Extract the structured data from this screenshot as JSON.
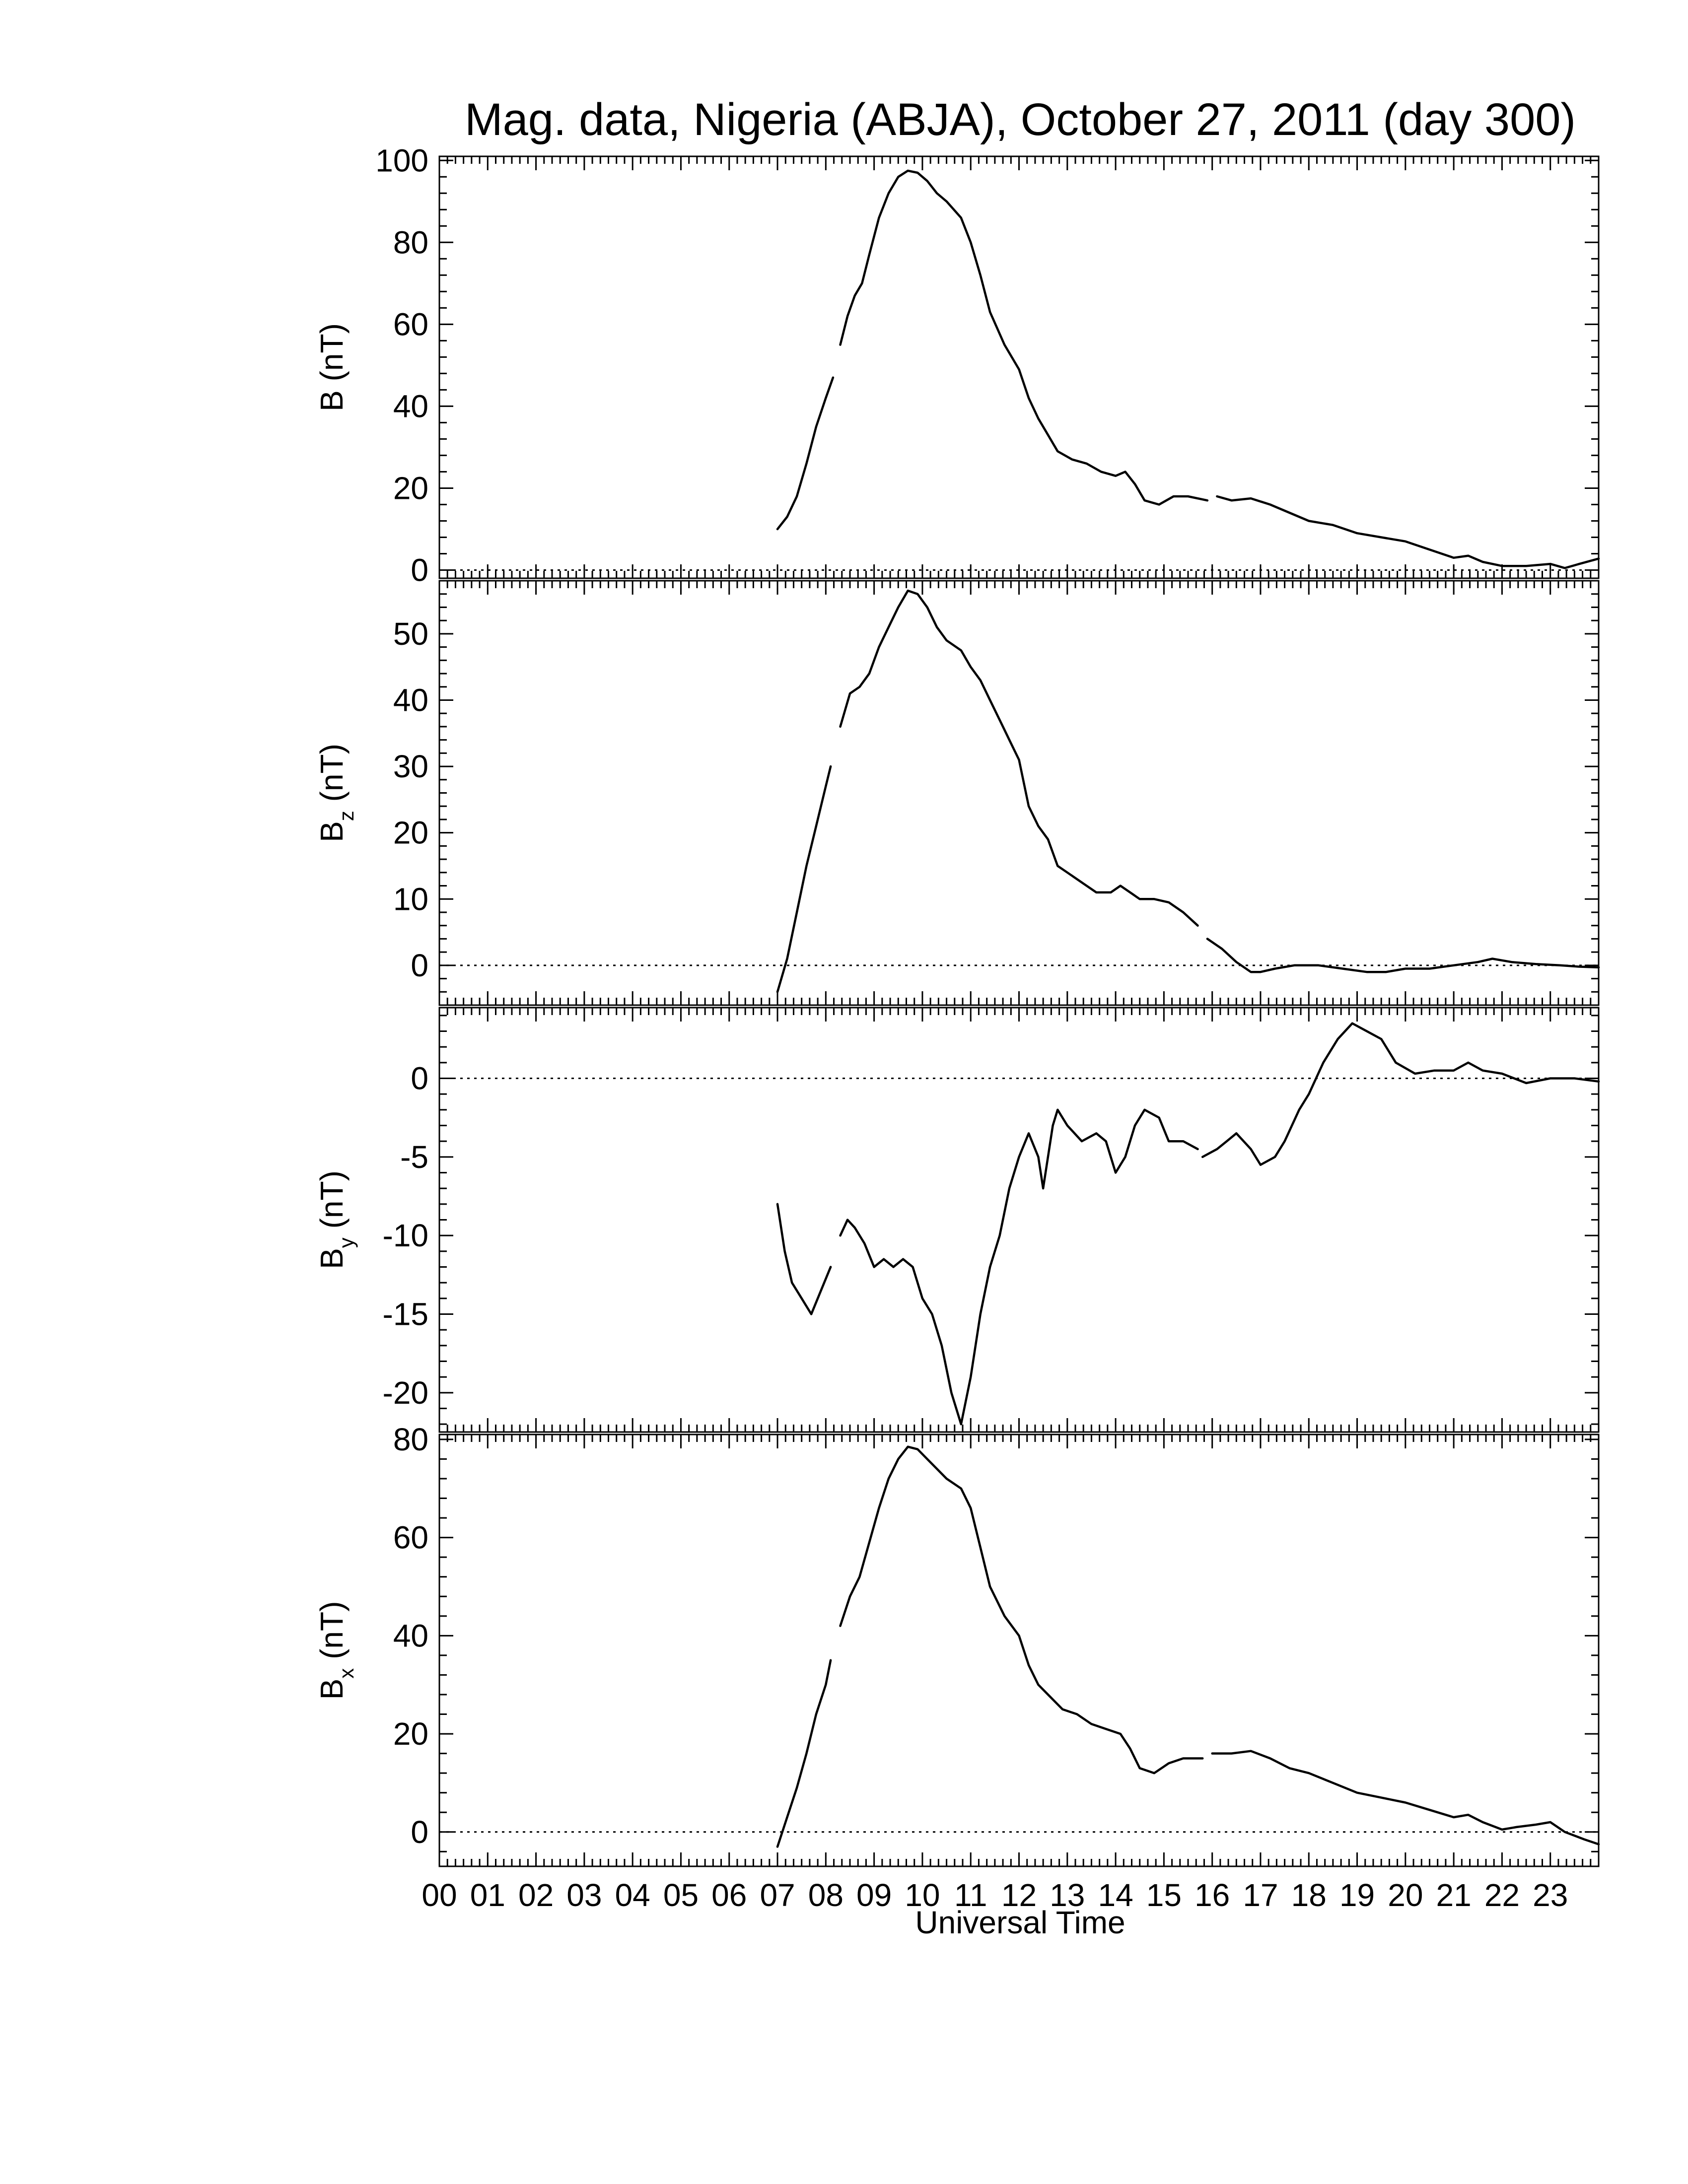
{
  "chart_data": {
    "type": "line",
    "title": "Mag. data, Nigeria (ABJA), October 27, 2011 (day 300)",
    "xlabel": "Universal Time",
    "x_ticks": [
      "00",
      "01",
      "02",
      "03",
      "04",
      "05",
      "06",
      "07",
      "08",
      "09",
      "10",
      "11",
      "12",
      "13",
      "14",
      "15",
      "16",
      "17",
      "18",
      "19",
      "20",
      "21",
      "22",
      "23"
    ],
    "xlim": [
      0,
      24
    ],
    "x_unit": "hours UT",
    "panels": [
      {
        "id": "B",
        "ylabel_main": "B",
        "ylabel_sub": "",
        "ylabel_unit": "(nT)",
        "ylim": [
          -2,
          101
        ],
        "yticks": [
          0,
          20,
          40,
          60,
          80,
          100
        ],
        "zero_line": true,
        "segments": [
          [
            [
              7.0,
              10
            ],
            [
              7.2,
              13
            ],
            [
              7.4,
              18
            ],
            [
              7.6,
              26
            ],
            [
              7.8,
              35
            ],
            [
              8.0,
              42
            ],
            [
              8.15,
              47
            ]
          ],
          [
            [
              8.3,
              55
            ],
            [
              8.45,
              62
            ],
            [
              8.6,
              67
            ],
            [
              8.75,
              70
            ],
            [
              8.9,
              77
            ],
            [
              9.1,
              86
            ],
            [
              9.3,
              92
            ],
            [
              9.5,
              96
            ],
            [
              9.7,
              97.5
            ],
            [
              9.9,
              97
            ],
            [
              10.1,
              95
            ],
            [
              10.3,
              92
            ],
            [
              10.5,
              90
            ],
            [
              10.8,
              86
            ],
            [
              11.0,
              80
            ],
            [
              11.2,
              72
            ],
            [
              11.4,
              63
            ],
            [
              11.7,
              55
            ],
            [
              12.0,
              49
            ],
            [
              12.2,
              42
            ],
            [
              12.4,
              37
            ],
            [
              12.6,
              33
            ],
            [
              12.8,
              29
            ],
            [
              13.1,
              27
            ],
            [
              13.4,
              26
            ],
            [
              13.7,
              24
            ],
            [
              14.0,
              23
            ],
            [
              14.2,
              24
            ],
            [
              14.4,
              21
            ],
            [
              14.6,
              17
            ],
            [
              14.9,
              16
            ],
            [
              15.2,
              18
            ],
            [
              15.5,
              18
            ],
            [
              15.9,
              17
            ]
          ],
          [
            [
              16.1,
              18
            ],
            [
              16.4,
              17
            ],
            [
              16.8,
              17.5
            ],
            [
              17.2,
              16
            ],
            [
              17.6,
              14
            ],
            [
              18.0,
              12
            ],
            [
              18.5,
              11
            ],
            [
              19.0,
              9
            ],
            [
              19.5,
              8
            ],
            [
              20.0,
              7
            ],
            [
              20.5,
              5
            ],
            [
              21.0,
              3
            ],
            [
              21.3,
              3.5
            ],
            [
              21.6,
              2
            ],
            [
              22.0,
              1
            ],
            [
              22.5,
              1
            ],
            [
              23.0,
              1.5
            ],
            [
              23.3,
              0.5
            ],
            [
              23.6,
              1.5
            ],
            [
              24.0,
              2.8
            ]
          ]
        ]
      },
      {
        "id": "Bz",
        "ylabel_main": "B",
        "ylabel_sub": "z",
        "ylabel_unit": "(nT)",
        "ylim": [
          -6,
          58
        ],
        "yticks": [
          0,
          10,
          20,
          30,
          40,
          50
        ],
        "zero_line": true,
        "segments": [
          [
            [
              7.0,
              -4
            ],
            [
              7.2,
              1
            ],
            [
              7.4,
              8
            ],
            [
              7.6,
              15
            ],
            [
              7.8,
              21
            ],
            [
              8.0,
              27
            ],
            [
              8.1,
              30
            ]
          ],
          [
            [
              8.3,
              36
            ],
            [
              8.5,
              41
            ],
            [
              8.7,
              42
            ],
            [
              8.9,
              44
            ],
            [
              9.1,
              48
            ],
            [
              9.3,
              51
            ],
            [
              9.5,
              54
            ],
            [
              9.7,
              56.5
            ],
            [
              9.9,
              56
            ],
            [
              10.1,
              54
            ],
            [
              10.3,
              51
            ],
            [
              10.5,
              49
            ],
            [
              10.8,
              47.5
            ],
            [
              11.0,
              45
            ],
            [
              11.2,
              43
            ],
            [
              11.4,
              40
            ],
            [
              11.6,
              37
            ],
            [
              11.8,
              34
            ],
            [
              12.0,
              31
            ],
            [
              12.2,
              24
            ],
            [
              12.4,
              21
            ],
            [
              12.6,
              19
            ],
            [
              12.8,
              15
            ],
            [
              13.0,
              14
            ],
            [
              13.3,
              12.5
            ],
            [
              13.6,
              11
            ],
            [
              13.9,
              11
            ],
            [
              14.1,
              12
            ],
            [
              14.3,
              11
            ],
            [
              14.5,
              10
            ],
            [
              14.8,
              10
            ],
            [
              15.1,
              9.5
            ],
            [
              15.4,
              8
            ],
            [
              15.7,
              6
            ]
          ],
          [
            [
              15.9,
              4
            ],
            [
              16.2,
              2.5
            ],
            [
              16.5,
              0.5
            ],
            [
              16.8,
              -1
            ],
            [
              17.0,
              -1
            ],
            [
              17.3,
              -0.5
            ],
            [
              17.7,
              0
            ],
            [
              18.2,
              0
            ],
            [
              18.7,
              -0.5
            ],
            [
              19.2,
              -1
            ],
            [
              19.6,
              -1
            ],
            [
              20.0,
              -0.5
            ],
            [
              20.5,
              -0.5
            ],
            [
              21.0,
              0
            ],
            [
              21.5,
              0.5
            ],
            [
              21.8,
              1
            ],
            [
              22.2,
              0.5
            ],
            [
              22.7,
              0.2
            ],
            [
              23.2,
              0
            ],
            [
              23.6,
              -0.2
            ],
            [
              24.0,
              -0.3
            ]
          ]
        ]
      },
      {
        "id": "By",
        "ylabel_main": "B",
        "ylabel_sub": "y",
        "ylabel_unit": "(nT)",
        "ylim": [
          -22.5,
          4.5
        ],
        "yticks": [
          0,
          -5,
          -10,
          -15,
          -20
        ],
        "zero_line": true,
        "segments": [
          [
            [
              7.0,
              -8
            ],
            [
              7.15,
              -11
            ],
            [
              7.3,
              -13
            ],
            [
              7.5,
              -14
            ],
            [
              7.7,
              -15
            ],
            [
              7.9,
              -13.5
            ],
            [
              8.1,
              -12
            ]
          ],
          [
            [
              8.3,
              -10
            ],
            [
              8.45,
              -9
            ],
            [
              8.6,
              -9.5
            ],
            [
              8.8,
              -10.5
            ],
            [
              9.0,
              -12
            ],
            [
              9.2,
              -11.5
            ],
            [
              9.4,
              -12
            ],
            [
              9.6,
              -11.5
            ],
            [
              9.8,
              -12
            ],
            [
              10.0,
              -14
            ],
            [
              10.2,
              -15
            ],
            [
              10.4,
              -17
            ],
            [
              10.6,
              -20
            ],
            [
              10.8,
              -22
            ],
            [
              11.0,
              -19
            ],
            [
              11.2,
              -15
            ],
            [
              11.4,
              -12
            ],
            [
              11.6,
              -10
            ],
            [
              11.8,
              -7
            ],
            [
              12.0,
              -5
            ],
            [
              12.2,
              -3.5
            ],
            [
              12.4,
              -5
            ],
            [
              12.5,
              -7
            ],
            [
              12.7,
              -3
            ],
            [
              12.8,
              -2
            ],
            [
              13.0,
              -3
            ],
            [
              13.3,
              -4
            ],
            [
              13.6,
              -3.5
            ],
            [
              13.8,
              -4
            ],
            [
              14.0,
              -6
            ],
            [
              14.2,
              -5
            ],
            [
              14.4,
              -3
            ],
            [
              14.6,
              -2
            ],
            [
              14.9,
              -2.5
            ],
            [
              15.1,
              -4
            ],
            [
              15.4,
              -4
            ],
            [
              15.7,
              -4.5
            ]
          ],
          [
            [
              15.8,
              -5
            ],
            [
              16.1,
              -4.5
            ],
            [
              16.3,
              -4
            ],
            [
              16.5,
              -3.5
            ],
            [
              16.8,
              -4.5
            ],
            [
              17.0,
              -5.5
            ],
            [
              17.3,
              -5
            ],
            [
              17.5,
              -4
            ],
            [
              17.8,
              -2
            ],
            [
              18.0,
              -1
            ],
            [
              18.3,
              1
            ],
            [
              18.6,
              2.5
            ],
            [
              18.9,
              3.5
            ],
            [
              19.2,
              3
            ],
            [
              19.5,
              2.5
            ],
            [
              19.8,
              1
            ],
            [
              20.2,
              0.3
            ],
            [
              20.6,
              0.5
            ],
            [
              21.0,
              0.5
            ],
            [
              21.3,
              1
            ],
            [
              21.6,
              0.5
            ],
            [
              22.0,
              0.3
            ],
            [
              22.5,
              -0.3
            ],
            [
              23.0,
              0
            ],
            [
              23.5,
              0
            ],
            [
              24.0,
              -0.2
            ]
          ]
        ]
      },
      {
        "id": "Bx",
        "ylabel_main": "B",
        "ylabel_sub": "x",
        "ylabel_unit": "(nT)",
        "ylim": [
          -7,
          81
        ],
        "yticks": [
          0,
          20,
          40,
          60,
          80
        ],
        "zero_line": true,
        "segments": [
          [
            [
              7.0,
              -3
            ],
            [
              7.2,
              3
            ],
            [
              7.4,
              9
            ],
            [
              7.6,
              16
            ],
            [
              7.8,
              24
            ],
            [
              8.0,
              30
            ],
            [
              8.1,
              35
            ]
          ],
          [
            [
              8.3,
              42
            ],
            [
              8.5,
              48
            ],
            [
              8.7,
              52
            ],
            [
              8.9,
              59
            ],
            [
              9.1,
              66
            ],
            [
              9.3,
              72
            ],
            [
              9.5,
              76
            ],
            [
              9.7,
              78.5
            ],
            [
              9.9,
              78
            ],
            [
              10.1,
              76
            ],
            [
              10.3,
              74
            ],
            [
              10.5,
              72
            ],
            [
              10.8,
              70
            ],
            [
              11.0,
              66
            ],
            [
              11.2,
              58
            ],
            [
              11.4,
              50
            ],
            [
              11.7,
              44
            ],
            [
              12.0,
              40
            ],
            [
              12.2,
              34
            ],
            [
              12.4,
              30
            ],
            [
              12.6,
              28
            ],
            [
              12.9,
              25
            ],
            [
              13.2,
              24
            ],
            [
              13.5,
              22
            ],
            [
              13.8,
              21
            ],
            [
              14.1,
              20
            ],
            [
              14.3,
              17
            ],
            [
              14.5,
              13
            ],
            [
              14.8,
              12
            ],
            [
              15.1,
              14
            ],
            [
              15.4,
              15
            ],
            [
              15.8,
              15
            ]
          ],
          [
            [
              16.0,
              16
            ],
            [
              16.4,
              16
            ],
            [
              16.8,
              16.5
            ],
            [
              17.2,
              15
            ],
            [
              17.6,
              13
            ],
            [
              18.0,
              12
            ],
            [
              18.5,
              10
            ],
            [
              19.0,
              8
            ],
            [
              19.5,
              7
            ],
            [
              20.0,
              6
            ],
            [
              20.5,
              4.5
            ],
            [
              21.0,
              3
            ],
            [
              21.3,
              3.5
            ],
            [
              21.6,
              2
            ],
            [
              22.0,
              0.5
            ],
            [
              22.3,
              1
            ],
            [
              22.7,
              1.5
            ],
            [
              23.0,
              2
            ],
            [
              23.3,
              0
            ],
            [
              23.7,
              -1.5
            ],
            [
              24.0,
              -2.5
            ]
          ]
        ]
      }
    ]
  }
}
